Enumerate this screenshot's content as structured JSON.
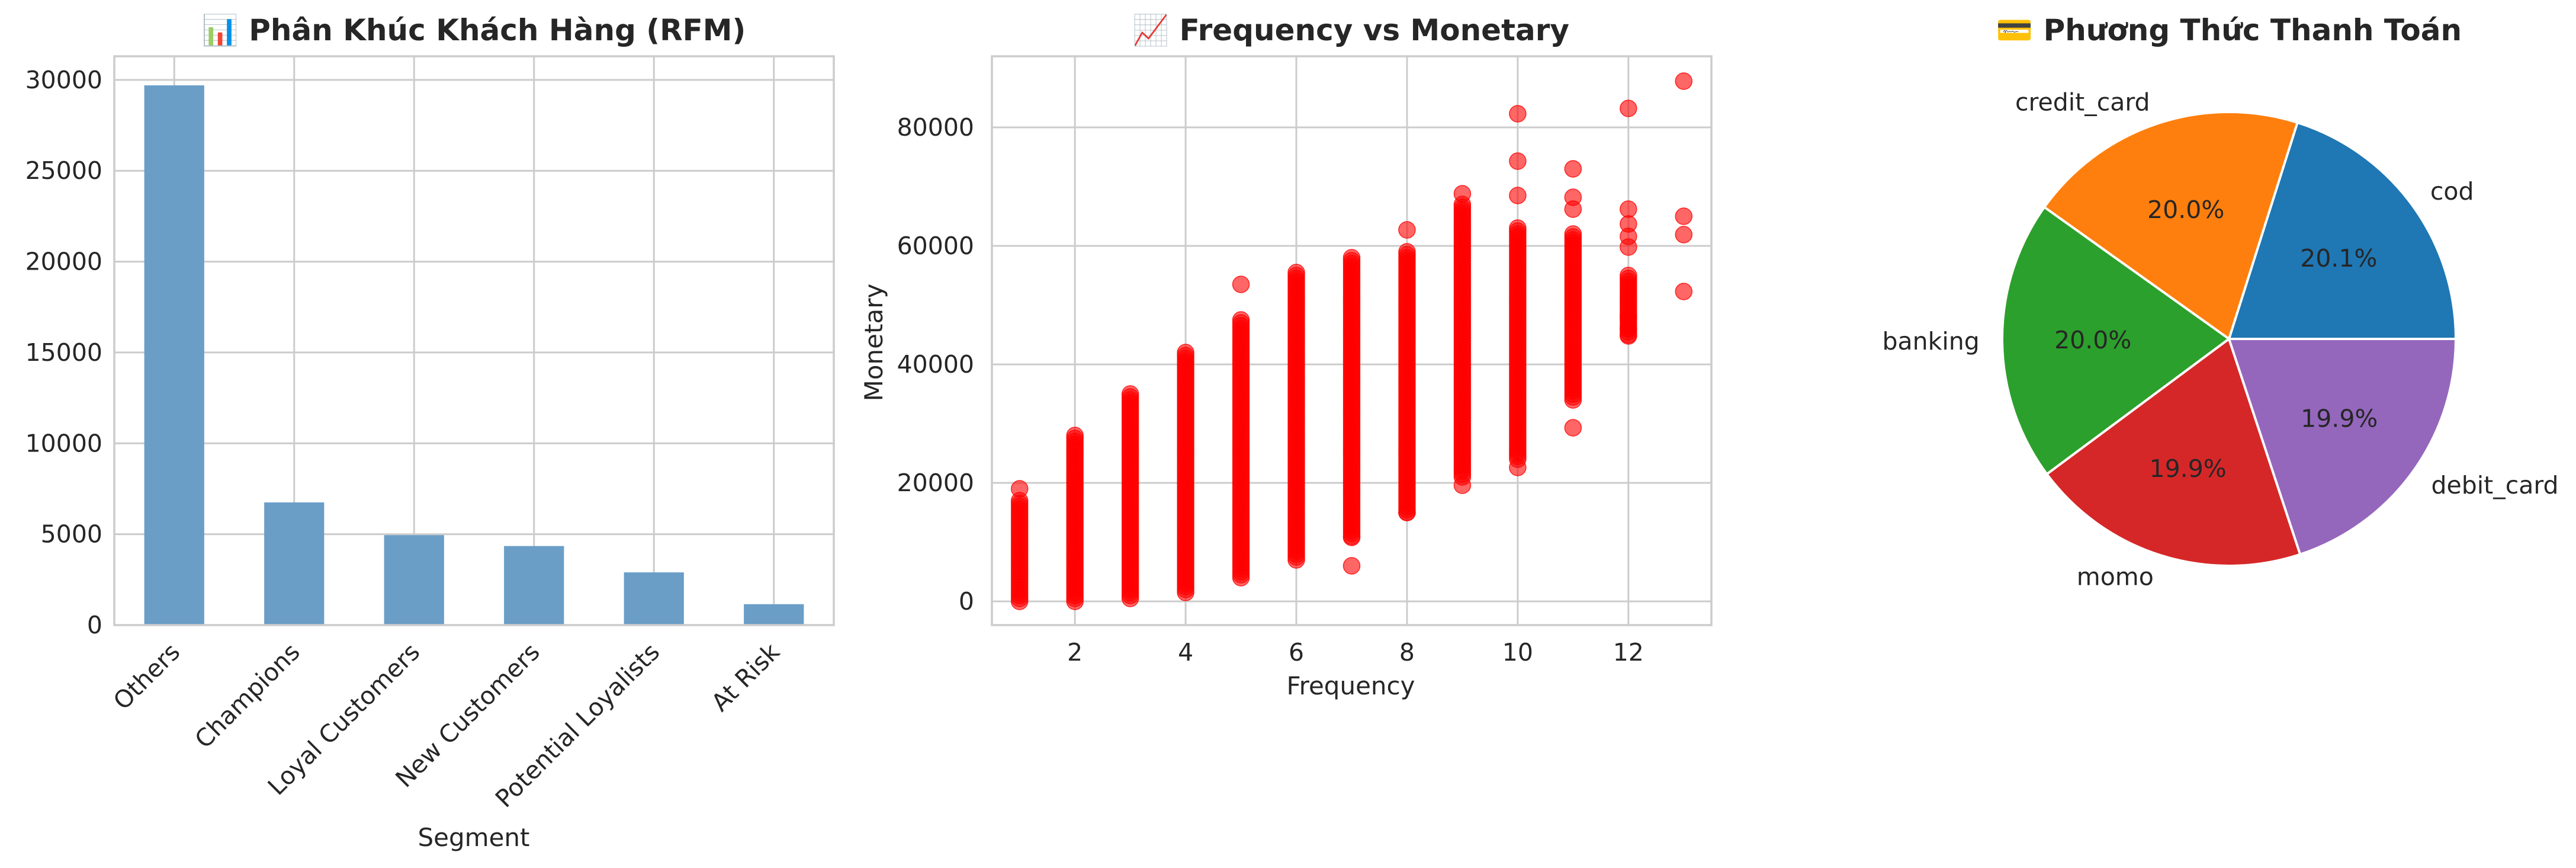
{
  "chart_data": [
    {
      "type": "bar",
      "title": "📊 Phân Khúc Khách Hàng (RFM)",
      "xlabel": "Segment",
      "ylabel": "",
      "categories": [
        "Others",
        "Champions",
        "Loyal Customers",
        "New Customers",
        "Potential Loyalists",
        "At Risk"
      ],
      "values": [
        29700,
        6750,
        4950,
        4350,
        2900,
        1150
      ],
      "ylim": [
        0,
        31300
      ],
      "yticks": [
        0,
        5000,
        10000,
        15000,
        20000,
        25000,
        30000
      ],
      "bar_color": "#6a9ec7",
      "grid": true
    },
    {
      "type": "scatter",
      "title": "📈 Frequency vs Monetary",
      "xlabel": "Frequency",
      "ylabel": "Monetary",
      "xlim": [
        0.5,
        13.5
      ],
      "ylim": [
        -4000,
        92000
      ],
      "xticks": [
        2,
        4,
        6,
        8,
        10,
        12
      ],
      "yticks": [
        0,
        20000,
        40000,
        60000,
        80000
      ],
      "point_color": "#ff0000",
      "grid": true,
      "columns": [
        {
          "x": 1,
          "min": 0,
          "max": 17000
        },
        {
          "x": 2,
          "min": 0,
          "max": 28000
        },
        {
          "x": 3,
          "min": 500,
          "max": 35000
        },
        {
          "x": 4,
          "min": 1500,
          "max": 42000
        },
        {
          "x": 5,
          "min": 4000,
          "max": 47500
        },
        {
          "x": 6,
          "min": 7000,
          "max": 55500
        },
        {
          "x": 7,
          "min": 11000,
          "max": 58000
        },
        {
          "x": 8,
          "min": 15000,
          "max": 59000
        },
        {
          "x": 9,
          "min": 21000,
          "max": 67000
        },
        {
          "x": 10,
          "min": 24000,
          "max": 63000
        },
        {
          "x": 11,
          "min": 34000,
          "max": 62000
        },
        {
          "x": 12,
          "min": 45000,
          "max": 55000
        }
      ],
      "points": [
        {
          "x": 1,
          "y": 19000
        },
        {
          "x": 5,
          "y": 53500
        },
        {
          "x": 7,
          "y": 10800
        },
        {
          "x": 7,
          "y": 6000
        },
        {
          "x": 8,
          "y": 62700
        },
        {
          "x": 8,
          "y": 15000
        },
        {
          "x": 9,
          "y": 68800
        },
        {
          "x": 9,
          "y": 19600
        },
        {
          "x": 10,
          "y": 82300
        },
        {
          "x": 10,
          "y": 74300
        },
        {
          "x": 10,
          "y": 68500
        },
        {
          "x": 10,
          "y": 22600
        },
        {
          "x": 11,
          "y": 73000
        },
        {
          "x": 11,
          "y": 68200
        },
        {
          "x": 11,
          "y": 66200
        },
        {
          "x": 11,
          "y": 29300
        },
        {
          "x": 12,
          "y": 83200
        },
        {
          "x": 12,
          "y": 66200
        },
        {
          "x": 12,
          "y": 63700
        },
        {
          "x": 12,
          "y": 61600
        },
        {
          "x": 12,
          "y": 59800
        },
        {
          "x": 12,
          "y": 48000
        },
        {
          "x": 12,
          "y": 46000
        },
        {
          "x": 12,
          "y": 44800
        },
        {
          "x": 13,
          "y": 87800
        },
        {
          "x": 13,
          "y": 65000
        },
        {
          "x": 13,
          "y": 61900
        },
        {
          "x": 13,
          "y": 52300
        }
      ]
    },
    {
      "type": "pie",
      "title": "💳 Phương Thức Thanh Toán",
      "slices": [
        {
          "label": "cod",
          "value": 20.1,
          "pct": "20.1%",
          "color": "#1f77b4"
        },
        {
          "label": "credit_card",
          "value": 20.0,
          "pct": "20.0%",
          "color": "#ff7f0e"
        },
        {
          "label": "banking",
          "value": 20.0,
          "pct": "20.0%",
          "color": "#2ca02c"
        },
        {
          "label": "momo",
          "value": 19.9,
          "pct": "19.9%",
          "color": "#d62728"
        },
        {
          "label": "debit_card",
          "value": 19.9,
          "pct": "19.9%",
          "color": "#9467bd"
        }
      ]
    }
  ]
}
